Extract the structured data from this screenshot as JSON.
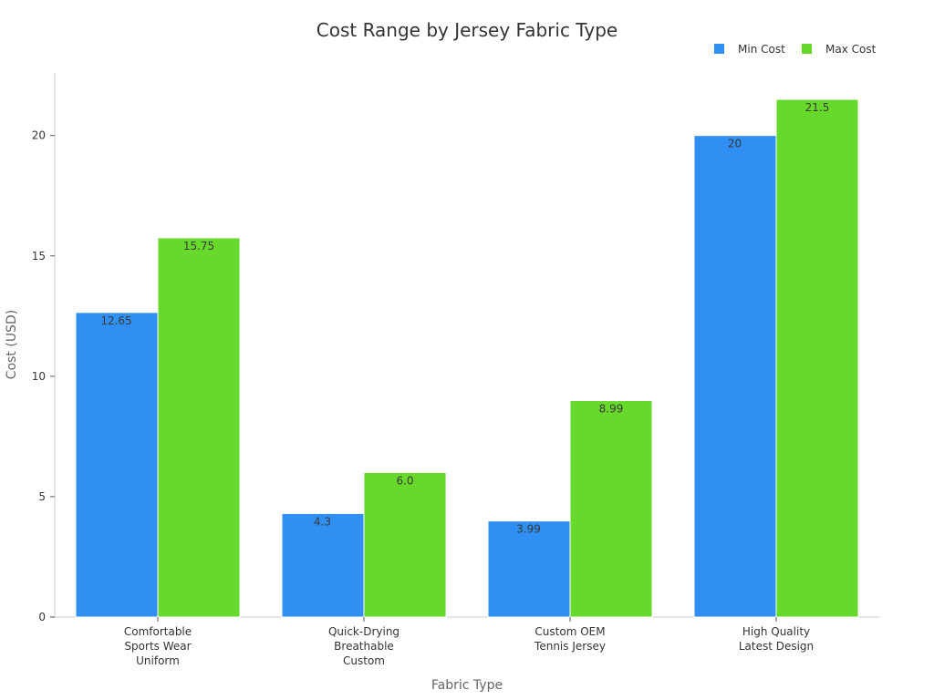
{
  "chart_data": {
    "type": "bar",
    "title": "Cost Range by Jersey Fabric Type",
    "xlabel": "Fabric Type",
    "ylabel": "Cost (USD)",
    "ylim": [
      0,
      22.6
    ],
    "yticks": [
      0,
      5,
      10,
      15,
      20
    ],
    "grid": false,
    "legend_position": "top-right",
    "categories": [
      [
        "Comfortable",
        "Sports Wear",
        "Uniform"
      ],
      [
        "Quick-Drying",
        "Breathable",
        "Custom"
      ],
      [
        "Custom OEM",
        "Tennis Jersey"
      ],
      [
        "High Quality",
        "Latest Design"
      ]
    ],
    "series": [
      {
        "name": "Min Cost",
        "color": "#2f8ff2",
        "values": [
          12.65,
          4.3,
          3.99,
          20
        ],
        "labels": [
          "12.65",
          "4.3",
          "3.99",
          "20"
        ]
      },
      {
        "name": "Max Cost",
        "color": "#66d92b",
        "values": [
          15.75,
          6.0,
          8.99,
          21.5
        ],
        "labels": [
          "15.75",
          "6.0",
          "8.99",
          "21.5"
        ]
      }
    ]
  }
}
